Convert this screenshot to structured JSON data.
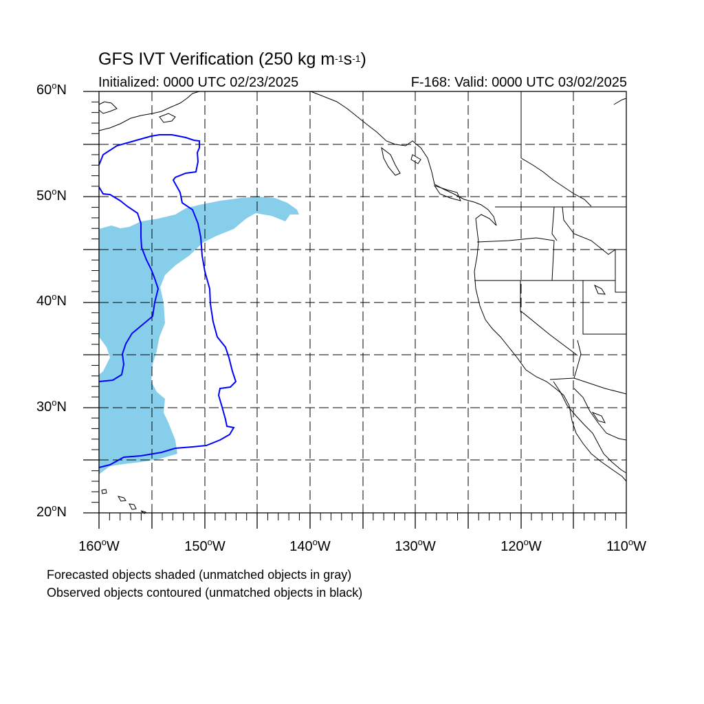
{
  "title": {
    "prefix": "GFS IVT Verification (250 kg m",
    "exp1": "-1",
    "middle": "s",
    "exp2": "-1",
    "suffix": ")"
  },
  "subtitle_left": "Initialized: 0000 UTC 02/23/2025",
  "subtitle_right": "F-168: Valid: 0000 UTC 03/02/2025",
  "map": {
    "projection": "cylindrical equidistant",
    "lon_range": [
      -160,
      -110
    ],
    "lat_range": [
      20,
      60
    ],
    "gridlines": "dashed, every 5 degrees",
    "forecast_color": "#87ceeb",
    "observed_color": "#0000ff",
    "coast_color": "#000000"
  },
  "lat_labels": [
    {
      "value": "60",
      "suffix": "N"
    },
    {
      "value": "50",
      "suffix": "N"
    },
    {
      "value": "40",
      "suffix": "N"
    },
    {
      "value": "30",
      "suffix": "N"
    },
    {
      "value": "20",
      "suffix": "N"
    }
  ],
  "lon_labels": [
    {
      "value": "160",
      "suffix": "W"
    },
    {
      "value": "150",
      "suffix": "W"
    },
    {
      "value": "140",
      "suffix": "W"
    },
    {
      "value": "130",
      "suffix": "W"
    },
    {
      "value": "120",
      "suffix": "W"
    },
    {
      "value": "110",
      "suffix": "W"
    }
  ],
  "deg_symbol": "o",
  "notes": [
    "Forecasted objects shaded (unmatched objects in gray)",
    "Observed objects contoured (unmatched objects in black)"
  ]
}
